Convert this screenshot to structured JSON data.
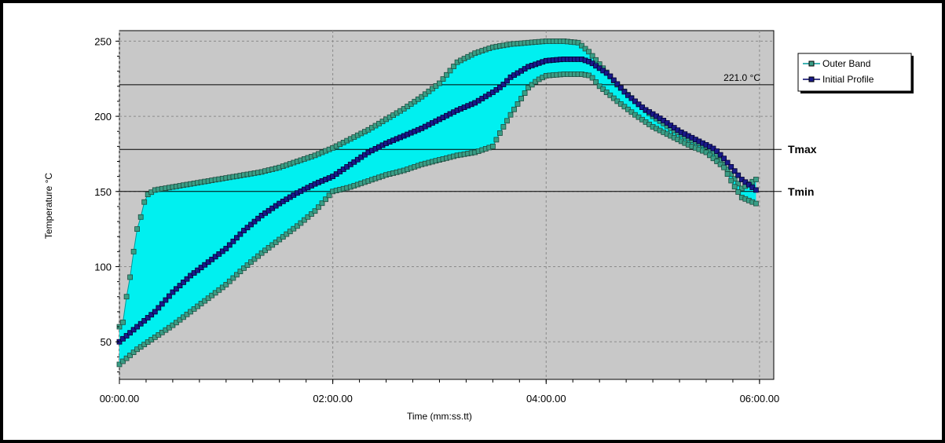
{
  "chart_data": {
    "type": "line",
    "xlabel": "Time (mm:ss.tt)",
    "ylabel": "Temperature °C",
    "x_ticks": [
      "00:00.00",
      "02:00.00",
      "04:00.00",
      "06:00.00"
    ],
    "x_tick_values": [
      0,
      120,
      240,
      360
    ],
    "y_ticks": [
      "50",
      "100",
      "150",
      "200",
      "250"
    ],
    "y_tick_values": [
      50,
      100,
      150,
      200,
      250
    ],
    "xlim": [
      0,
      368
    ],
    "ylim": [
      25,
      257
    ],
    "grid": true,
    "legend_position": "top-right",
    "band_fill_color": "#00f0f0",
    "plot_background": "#c8c8c8",
    "reference_lines": [
      {
        "y": 221,
        "label": "221.0 °C",
        "style": "inside"
      },
      {
        "y": 178,
        "label": "Tmax",
        "style": "outside"
      },
      {
        "y": 150,
        "label": "Tmin",
        "style": "outside"
      }
    ],
    "series": [
      {
        "name": "Outer Band",
        "color": "#009999",
        "marker_fill": "#3a9e86",
        "upper": [
          [
            0,
            60
          ],
          [
            2,
            63
          ],
          [
            4,
            80
          ],
          [
            6,
            93
          ],
          [
            8,
            110
          ],
          [
            10,
            125
          ],
          [
            12,
            133
          ],
          [
            14,
            143
          ],
          [
            16,
            148
          ],
          [
            20,
            151
          ],
          [
            25,
            152
          ],
          [
            30,
            153
          ],
          [
            40,
            155
          ],
          [
            50,
            157
          ],
          [
            60,
            159
          ],
          [
            70,
            161
          ],
          [
            80,
            163
          ],
          [
            90,
            166
          ],
          [
            100,
            170
          ],
          [
            110,
            174
          ],
          [
            120,
            179
          ],
          [
            130,
            185
          ],
          [
            140,
            191
          ],
          [
            150,
            198
          ],
          [
            160,
            205
          ],
          [
            170,
            213
          ],
          [
            180,
            222
          ],
          [
            185,
            229
          ],
          [
            190,
            236
          ],
          [
            200,
            242
          ],
          [
            210,
            246
          ],
          [
            220,
            248
          ],
          [
            230,
            249
          ],
          [
            240,
            250
          ],
          [
            250,
            250
          ],
          [
            258,
            249
          ],
          [
            264,
            243
          ],
          [
            272,
            232
          ],
          [
            280,
            221
          ],
          [
            290,
            210
          ],
          [
            300,
            200
          ],
          [
            310,
            192
          ],
          [
            320,
            185
          ],
          [
            330,
            180
          ],
          [
            335,
            175
          ],
          [
            340,
            168
          ],
          [
            345,
            160
          ],
          [
            350,
            152
          ],
          [
            358,
            158
          ]
        ],
        "lower": [
          [
            0,
            35
          ],
          [
            5,
            40
          ],
          [
            10,
            45
          ],
          [
            20,
            53
          ],
          [
            30,
            61
          ],
          [
            40,
            70
          ],
          [
            50,
            79
          ],
          [
            60,
            88
          ],
          [
            70,
            99
          ],
          [
            80,
            109
          ],
          [
            90,
            118
          ],
          [
            100,
            127
          ],
          [
            110,
            137
          ],
          [
            120,
            150
          ],
          [
            130,
            153
          ],
          [
            140,
            157
          ],
          [
            150,
            161
          ],
          [
            160,
            164
          ],
          [
            170,
            168
          ],
          [
            180,
            171
          ],
          [
            190,
            174
          ],
          [
            200,
            176
          ],
          [
            210,
            180
          ],
          [
            215,
            191
          ],
          [
            220,
            201
          ],
          [
            225,
            210
          ],
          [
            230,
            219
          ],
          [
            235,
            224
          ],
          [
            240,
            227
          ],
          [
            250,
            228
          ],
          [
            260,
            228
          ],
          [
            265,
            227
          ],
          [
            270,
            220
          ],
          [
            280,
            210
          ],
          [
            290,
            201
          ],
          [
            300,
            193
          ],
          [
            310,
            187
          ],
          [
            320,
            181
          ],
          [
            330,
            176
          ],
          [
            340,
            166
          ],
          [
            345,
            155
          ],
          [
            350,
            146
          ],
          [
            358,
            142
          ]
        ]
      },
      {
        "name": "Initial Profile",
        "color": "#000066",
        "marker_fill": "#1a1a8a",
        "points": [
          [
            0,
            50
          ],
          [
            10,
            60
          ],
          [
            20,
            70
          ],
          [
            30,
            83
          ],
          [
            40,
            94
          ],
          [
            50,
            103
          ],
          [
            60,
            112
          ],
          [
            70,
            124
          ],
          [
            80,
            134
          ],
          [
            90,
            142
          ],
          [
            100,
            149
          ],
          [
            110,
            155
          ],
          [
            120,
            160
          ],
          [
            130,
            168
          ],
          [
            140,
            176
          ],
          [
            150,
            182
          ],
          [
            160,
            187
          ],
          [
            170,
            192
          ],
          [
            180,
            198
          ],
          [
            190,
            204
          ],
          [
            200,
            209
          ],
          [
            210,
            216
          ],
          [
            215,
            220
          ],
          [
            220,
            226
          ],
          [
            230,
            233
          ],
          [
            240,
            237
          ],
          [
            250,
            238
          ],
          [
            260,
            238
          ],
          [
            265,
            236
          ],
          [
            275,
            228
          ],
          [
            285,
            215
          ],
          [
            295,
            205
          ],
          [
            305,
            198
          ],
          [
            315,
            190
          ],
          [
            325,
            184
          ],
          [
            335,
            178
          ],
          [
            340,
            172
          ],
          [
            345,
            165
          ],
          [
            350,
            158
          ],
          [
            358,
            151
          ]
        ]
      }
    ]
  }
}
